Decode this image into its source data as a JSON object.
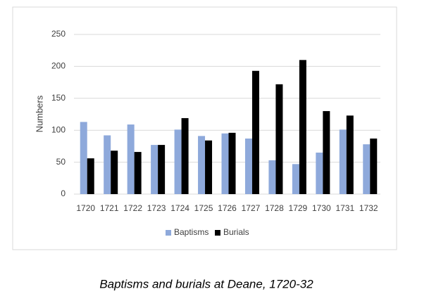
{
  "chart_data": {
    "type": "bar",
    "title": "Baptisms and burials at Deane, 1720-32",
    "y_label": "Numbers",
    "categories": [
      "1720",
      "1721",
      "1722",
      "1723",
      "1724",
      "1725",
      "1726",
      "1727",
      "1728",
      "1729",
      "1730",
      "1731",
      "1732"
    ],
    "series": [
      {
        "name": "Baptisms",
        "color": "#8ea9db",
        "values": [
          113,
          92,
          109,
          77,
          101,
          91,
          95,
          87,
          53,
          47,
          65,
          101,
          78
        ]
      },
      {
        "name": "Burials",
        "color": "#000000",
        "values": [
          56,
          68,
          66,
          77,
          119,
          84,
          96,
          193,
          172,
          210,
          130,
          123,
          87
        ]
      }
    ],
    "ylim": [
      0,
      250
    ],
    "yticks": [
      0,
      50,
      100,
      150,
      200,
      250
    ],
    "grid": true,
    "legend": "bottom"
  }
}
